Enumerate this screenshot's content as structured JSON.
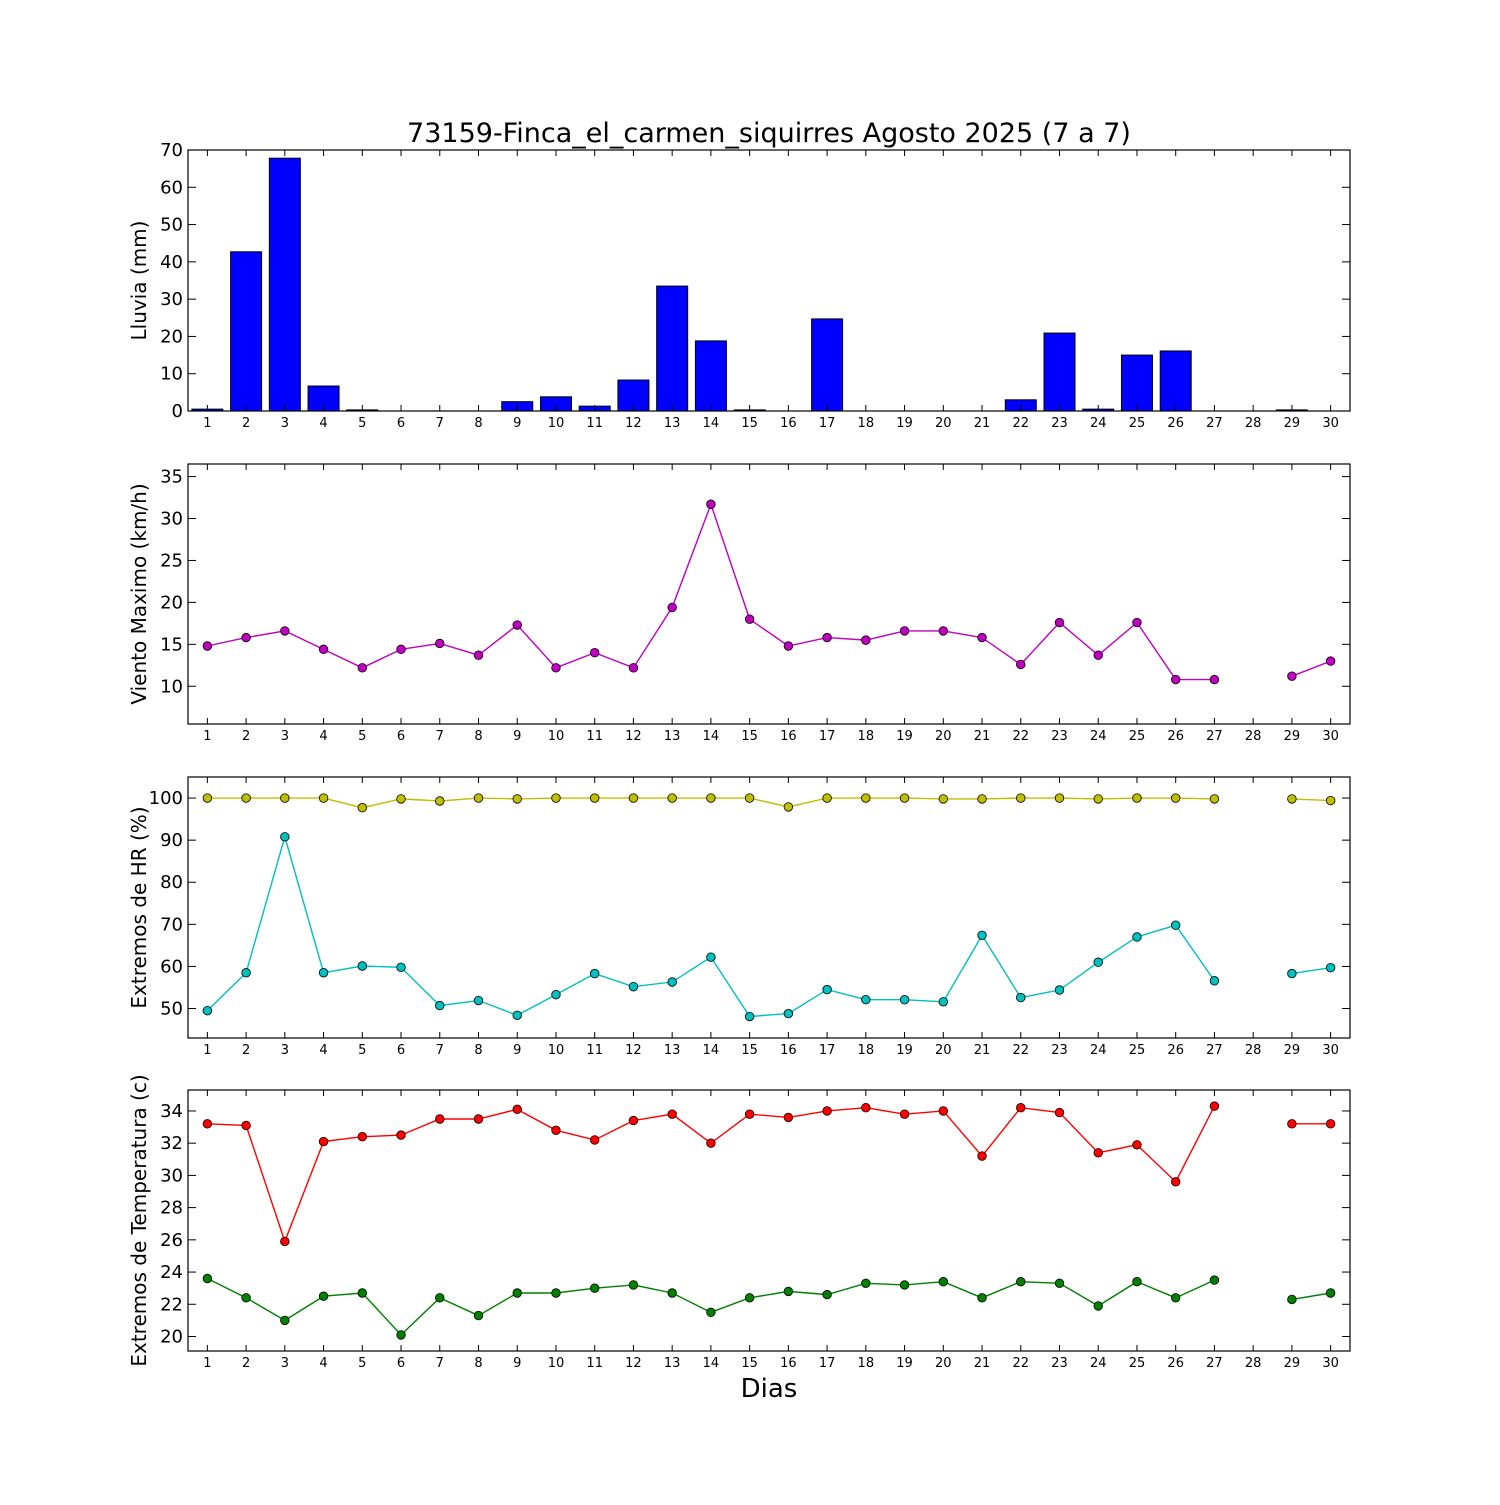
{
  "title": "73159-Finca_el_carmen_siquirres Agosto 2025  (7 a 7)",
  "xlabel": "Dias",
  "chart_data": [
    {
      "type": "bar",
      "ylabel": "Lluvia (mm)",
      "ylim": [
        0,
        70
      ],
      "yticks": [
        0,
        10,
        20,
        30,
        40,
        50,
        60,
        70
      ],
      "x": [
        1,
        2,
        3,
        4,
        5,
        6,
        7,
        8,
        9,
        10,
        11,
        12,
        13,
        14,
        15,
        16,
        17,
        18,
        19,
        20,
        21,
        22,
        23,
        24,
        25,
        26,
        27,
        28,
        29,
        30
      ],
      "series": [
        {
          "color": "#0000ff",
          "values": [
            0.5,
            42.7,
            67.8,
            6.7,
            0.3,
            0,
            0,
            0,
            2.5,
            3.8,
            1.3,
            8.3,
            33.5,
            18.8,
            0.3,
            0,
            24.7,
            0,
            0,
            0,
            0,
            3.0,
            20.9,
            0.5,
            15.0,
            16.1,
            0,
            0,
            0.3,
            0
          ]
        }
      ]
    },
    {
      "type": "line",
      "ylabel": "Viento Maximo (km/h)",
      "ylim": [
        5.5,
        36.5
      ],
      "yticks": [
        10,
        15,
        20,
        25,
        30,
        35
      ],
      "x": [
        1,
        2,
        3,
        4,
        5,
        6,
        7,
        8,
        9,
        10,
        11,
        12,
        13,
        14,
        15,
        16,
        17,
        18,
        19,
        20,
        21,
        22,
        23,
        24,
        25,
        26,
        27,
        28,
        29,
        30
      ],
      "series": [
        {
          "color": "#bf00bf",
          "values": [
            14.8,
            15.8,
            16.6,
            14.4,
            12.2,
            14.4,
            15.1,
            13.7,
            17.3,
            12.2,
            14.0,
            12.2,
            19.4,
            31.7,
            18.0,
            14.8,
            15.8,
            15.5,
            16.6,
            16.6,
            15.8,
            12.6,
            17.6,
            13.7,
            17.6,
            10.8,
            10.8,
            null,
            11.2,
            13.0
          ]
        }
      ]
    },
    {
      "type": "line",
      "ylabel": "Extremos de HR (%)",
      "ylim": [
        43,
        105
      ],
      "yticks": [
        50,
        60,
        70,
        80,
        90,
        100
      ],
      "x": [
        1,
        2,
        3,
        4,
        5,
        6,
        7,
        8,
        9,
        10,
        11,
        12,
        13,
        14,
        15,
        16,
        17,
        18,
        19,
        20,
        21,
        22,
        23,
        24,
        25,
        26,
        27,
        28,
        29,
        30
      ],
      "series": [
        {
          "color": "#bfbf00",
          "values": [
            100,
            100,
            100,
            100,
            97.7,
            99.8,
            99.3,
            100,
            99.8,
            100,
            100,
            100,
            100,
            100,
            100,
            97.9,
            100,
            100,
            100,
            99.8,
            99.8,
            100,
            100,
            99.8,
            100,
            100,
            99.8,
            null,
            99.8,
            99.4
          ]
        },
        {
          "color": "#00bfbf",
          "values": [
            49.5,
            58.5,
            90.8,
            58.5,
            60.1,
            59.8,
            50.7,
            51.9,
            48.4,
            53.3,
            58.3,
            55.2,
            56.3,
            62.2,
            48.1,
            48.8,
            54.5,
            52.1,
            52.1,
            51.6,
            67.4,
            52.6,
            54.4,
            61.0,
            67.0,
            69.8,
            56.6,
            null,
            58.3,
            59.7
          ]
        }
      ]
    },
    {
      "type": "line",
      "ylabel": "Extremos de Temperatura (c)",
      "ylim": [
        19.1,
        35.3
      ],
      "yticks": [
        20,
        22,
        24,
        26,
        28,
        30,
        32,
        34
      ],
      "x": [
        1,
        2,
        3,
        4,
        5,
        6,
        7,
        8,
        9,
        10,
        11,
        12,
        13,
        14,
        15,
        16,
        17,
        18,
        19,
        20,
        21,
        22,
        23,
        24,
        25,
        26,
        27,
        28,
        29,
        30
      ],
      "series": [
        {
          "color": "#ff0000",
          "values": [
            33.2,
            33.1,
            25.9,
            32.1,
            32.4,
            32.5,
            33.5,
            33.5,
            34.1,
            32.8,
            32.2,
            33.4,
            33.8,
            32.0,
            33.8,
            33.6,
            34.0,
            34.2,
            33.8,
            34.0,
            31.2,
            34.2,
            33.9,
            31.4,
            31.9,
            29.6,
            34.3,
            null,
            33.2,
            33.2
          ]
        },
        {
          "color": "#008000",
          "values": [
            23.6,
            22.4,
            21.0,
            22.5,
            22.7,
            20.1,
            22.4,
            21.3,
            22.7,
            22.7,
            23.0,
            23.2,
            22.7,
            21.5,
            22.4,
            22.8,
            22.6,
            23.3,
            23.2,
            23.4,
            22.4,
            23.4,
            23.3,
            21.9,
            23.4,
            22.4,
            23.5,
            null,
            22.3,
            22.7
          ]
        }
      ]
    }
  ]
}
